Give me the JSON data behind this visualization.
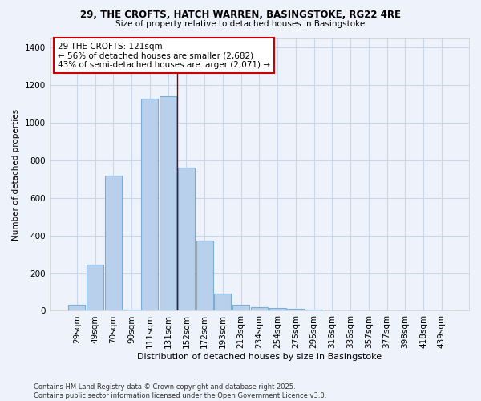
{
  "title_line1": "29, THE CROFTS, HATCH WARREN, BASINGSTOKE, RG22 4RE",
  "title_line2": "Size of property relative to detached houses in Basingstoke",
  "xlabel": "Distribution of detached houses by size in Basingstoke",
  "ylabel": "Number of detached properties",
  "categories": [
    "29sqm",
    "49sqm",
    "70sqm",
    "90sqm",
    "111sqm",
    "131sqm",
    "152sqm",
    "172sqm",
    "193sqm",
    "213sqm",
    "234sqm",
    "254sqm",
    "275sqm",
    "295sqm",
    "316sqm",
    "336sqm",
    "357sqm",
    "377sqm",
    "398sqm",
    "418sqm",
    "439sqm"
  ],
  "values": [
    30,
    245,
    720,
    5,
    1130,
    1140,
    760,
    375,
    90,
    30,
    18,
    15,
    12,
    7,
    0,
    2,
    0,
    0,
    0,
    0,
    0
  ],
  "bar_color": "#b8d0eb",
  "bar_edge_color": "#7aaed6",
  "grid_color": "#c8d8ec",
  "background_color": "#eef2fb",
  "vline_x": 5.5,
  "vline_color": "#8b0000",
  "annotation_text": "29 THE CROFTS: 121sqm\n← 56% of detached houses are smaller (2,682)\n43% of semi-detached houses are larger (2,071) →",
  "annotation_box_color": "#ffffff",
  "annotation_box_edge": "#cc0000",
  "ylim": [
    0,
    1450
  ],
  "yticks": [
    0,
    200,
    400,
    600,
    800,
    1000,
    1200,
    1400
  ],
  "footnote": "Contains HM Land Registry data © Crown copyright and database right 2025.\nContains public sector information licensed under the Open Government Licence v3.0."
}
